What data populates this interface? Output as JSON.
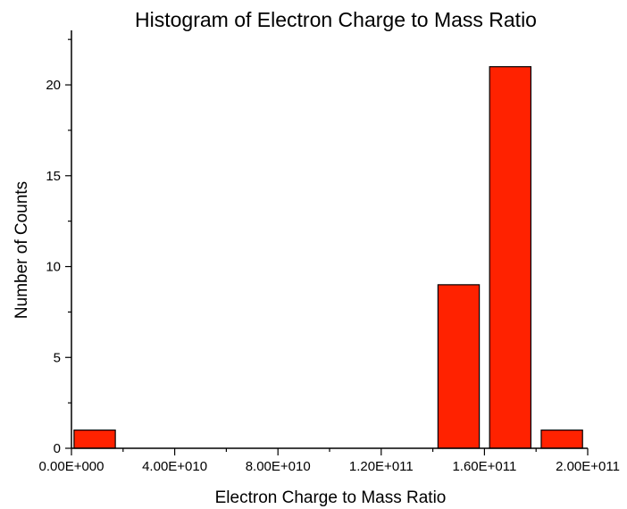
{
  "chart_data": {
    "type": "bar",
    "title": "Histogram of Electron Charge to Mass Ratio",
    "xlabel": "Electron Charge to Mass Ratio",
    "ylabel": "Number of Counts",
    "bar_color": "#ff2200",
    "xlim": [
      0,
      200000000000
    ],
    "ylim": [
      0,
      23
    ],
    "x_ticks": [
      0,
      40000000000,
      80000000000,
      120000000000,
      160000000000,
      200000000000
    ],
    "x_tick_labels": [
      "0.00E+000",
      "4.00E+010",
      "8.00E+010",
      "1.20E+011",
      "1.60E+011",
      "2.00E+011"
    ],
    "y_ticks": [
      0,
      5,
      10,
      15,
      20
    ],
    "y_tick_labels": [
      "0",
      "5",
      "10",
      "15",
      "20"
    ],
    "bins": [
      {
        "x_start": 1000000000,
        "x_end": 17000000000,
        "value": 1
      },
      {
        "x_start": 142000000000,
        "x_end": 158000000000,
        "value": 9
      },
      {
        "x_start": 162000000000,
        "x_end": 178000000000,
        "value": 21
      },
      {
        "x_start": 182000000000,
        "x_end": 198000000000,
        "value": 1
      }
    ]
  }
}
